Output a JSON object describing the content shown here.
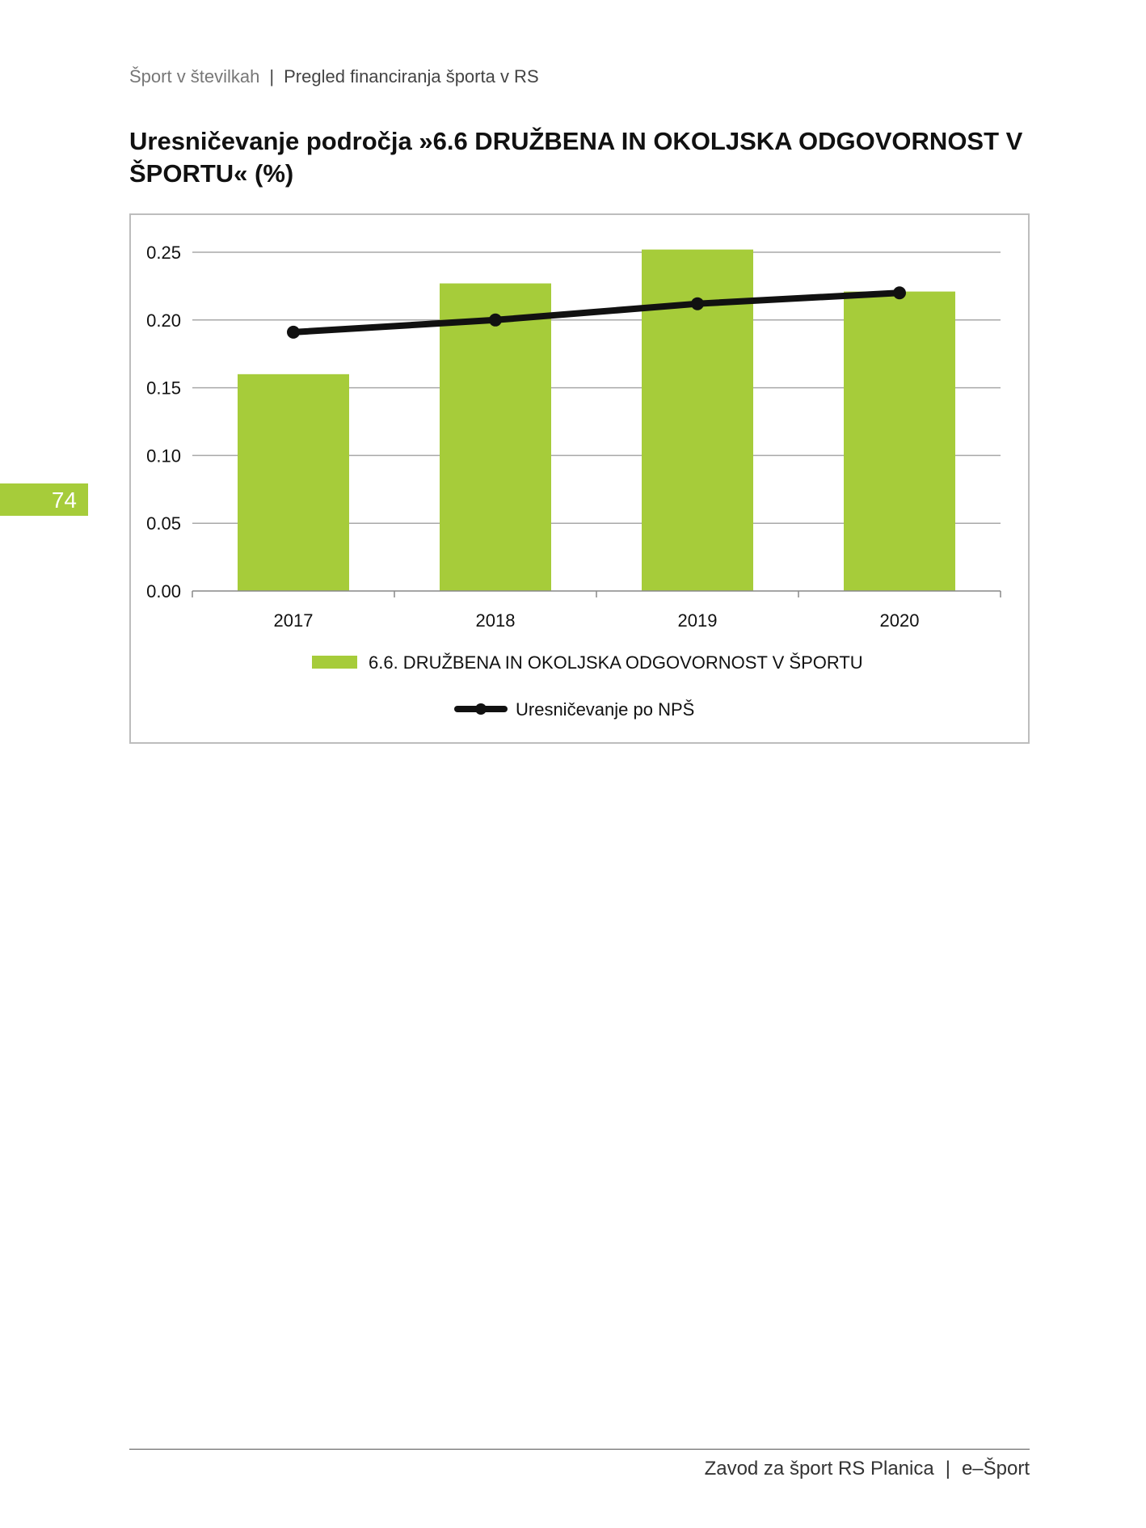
{
  "header": {
    "section": "Šport v številkah",
    "separator": "|",
    "subsection": "Pregled financiranja športa v RS"
  },
  "page_number": "74",
  "chart_data": {
    "type": "bar",
    "title": "Uresničevanje področja »6.6 DRUŽBENA IN OKOLJSKA ODGOVORNOST V ŠPORTU« (%)",
    "categories": [
      "2017",
      "2018",
      "2019",
      "2020"
    ],
    "series": [
      {
        "name": "6.6. DRUŽBENA IN OKOLJSKA ODGOVORNOST V ŠPORTU",
        "type": "bar",
        "values": [
          0.16,
          0.227,
          0.252,
          0.221
        ],
        "color": "#a6cc3a"
      },
      {
        "name": "Uresničevanje po NPŠ",
        "type": "line",
        "values": [
          0.191,
          0.2,
          0.212,
          0.22
        ],
        "color": "#111111"
      }
    ],
    "ylim": [
      0,
      0.25
    ],
    "yticks": [
      "0.00",
      "0.05",
      "0.10",
      "0.15",
      "0.20",
      "0.25"
    ],
    "xlabel": "",
    "ylabel": "",
    "grid": true,
    "legend_position": "bottom"
  },
  "footer": {
    "publisher": "Zavod za šport RS Planica",
    "separator": "|",
    "product": "e–Šport"
  }
}
